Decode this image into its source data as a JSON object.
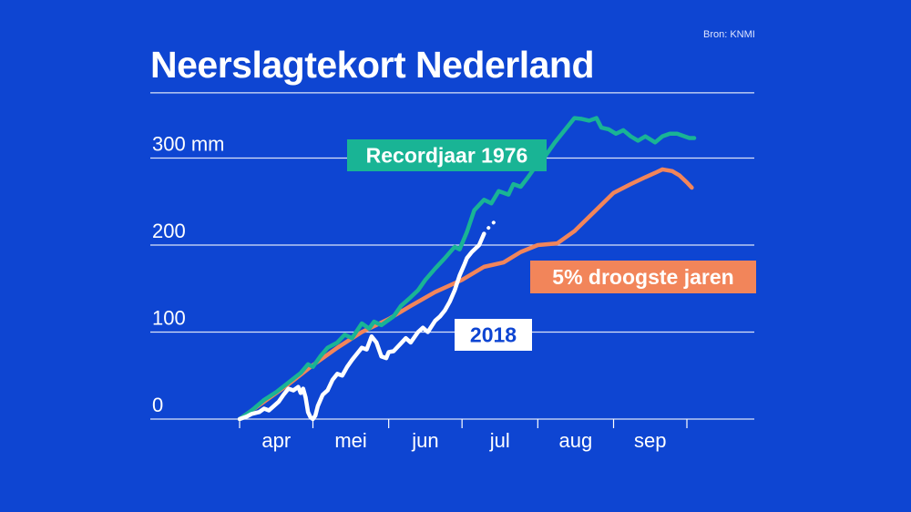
{
  "title": "Neerslagtekort Nederland",
  "source": "Bron: KNMI",
  "colors": {
    "background": "#0e45d2",
    "record_1976": "#19b495",
    "dry_5pct": "#f2855a",
    "year_2018": "#ffffff"
  },
  "chart_data": {
    "type": "line",
    "title": "Neerslagtekort Nederland",
    "ylabel": "",
    "xlabel": "",
    "ylim": [
      0,
      375
    ],
    "xlim": [
      0,
      190
    ],
    "y_ticks": [
      {
        "value": 0,
        "label": "0"
      },
      {
        "value": 100,
        "label": "100"
      },
      {
        "value": 200,
        "label": "200"
      },
      {
        "value": 300,
        "label": "300 mm"
      }
    ],
    "extra_gridlines": [
      375
    ],
    "x_ticks": [
      {
        "value": 0,
        "label": "apr"
      },
      {
        "value": 30,
        "label": "mei"
      },
      {
        "value": 61,
        "label": "jun"
      },
      {
        "value": 91,
        "label": "jul"
      },
      {
        "value": 122,
        "label": "aug"
      },
      {
        "value": 153,
        "label": "sep"
      }
    ],
    "x_boundaries": [
      0,
      30,
      61,
      91,
      122,
      153,
      183
    ],
    "grid": true,
    "series": [
      {
        "name": "Recordjaar 1976",
        "color": "#19b495",
        "x": [
          0,
          5,
          10,
          15,
          20,
          25,
          28,
          30,
          33,
          36,
          40,
          43,
          46,
          50,
          53,
          55,
          58,
          60,
          63,
          66,
          70,
          73,
          76,
          80,
          84,
          88,
          90,
          93,
          96,
          100,
          103,
          106,
          110,
          112,
          115,
          118,
          121,
          125,
          129,
          133,
          137,
          140,
          143,
          146,
          148,
          151,
          154,
          157,
          160,
          163,
          166,
          170,
          173,
          176,
          179,
          182,
          184,
          186
        ],
        "y": [
          0,
          10,
          22,
          31,
          42,
          53,
          63,
          60,
          72,
          82,
          88,
          97,
          93,
          110,
          104,
          112,
          108,
          112,
          118,
          130,
          140,
          148,
          160,
          173,
          185,
          198,
          195,
          215,
          240,
          252,
          248,
          262,
          258,
          270,
          267,
          278,
          290,
          302,
          318,
          332,
          346,
          345,
          343,
          346,
          335,
          333,
          328,
          332,
          325,
          320,
          325,
          318,
          325,
          328,
          328,
          325,
          323,
          323
        ]
      },
      {
        "name": "5% droogste jaren",
        "color": "#f2855a",
        "x": [
          0,
          10,
          20,
          30,
          40,
          50,
          61,
          70,
          80,
          91,
          100,
          108,
          115,
          122,
          130,
          137,
          145,
          153,
          160,
          166,
          170,
          173,
          177,
          180,
          183,
          185
        ],
        "y": [
          0,
          20,
          40,
          62,
          82,
          100,
          115,
          130,
          146,
          160,
          175,
          180,
          192,
          200,
          202,
          216,
          238,
          260,
          270,
          278,
          283,
          287,
          285,
          280,
          272,
          266
        ]
      },
      {
        "name": "2018",
        "color": "#ffffff",
        "x": [
          0,
          3,
          5,
          8,
          10,
          12,
          14,
          16,
          18,
          20,
          22,
          24,
          25,
          26,
          27,
          28,
          29,
          30,
          31,
          32,
          34,
          36,
          38,
          40,
          42,
          44,
          46,
          48,
          50,
          52,
          54,
          56,
          58,
          60,
          61,
          63,
          66,
          68,
          70,
          73,
          75,
          77,
          80,
          82,
          84,
          86,
          88,
          90,
          92,
          93,
          95,
          98,
          100,
          103,
          105
        ],
        "y": [
          0,
          3,
          6,
          8,
          12,
          10,
          15,
          20,
          28,
          35,
          33,
          37,
          30,
          35,
          25,
          8,
          2,
          0,
          4,
          15,
          28,
          33,
          45,
          52,
          50,
          60,
          68,
          75,
          82,
          80,
          95,
          88,
          72,
          70,
          77,
          78,
          87,
          93,
          88,
          100,
          105,
          100,
          113,
          118,
          125,
          135,
          148,
          165,
          178,
          185,
          192,
          200,
          213,
          224,
          228
        ]
      }
    ],
    "annotations": [
      {
        "text": "Recordjaar 1976"
      },
      {
        "text": "5% droogste jaren"
      },
      {
        "text": "2018"
      }
    ]
  }
}
